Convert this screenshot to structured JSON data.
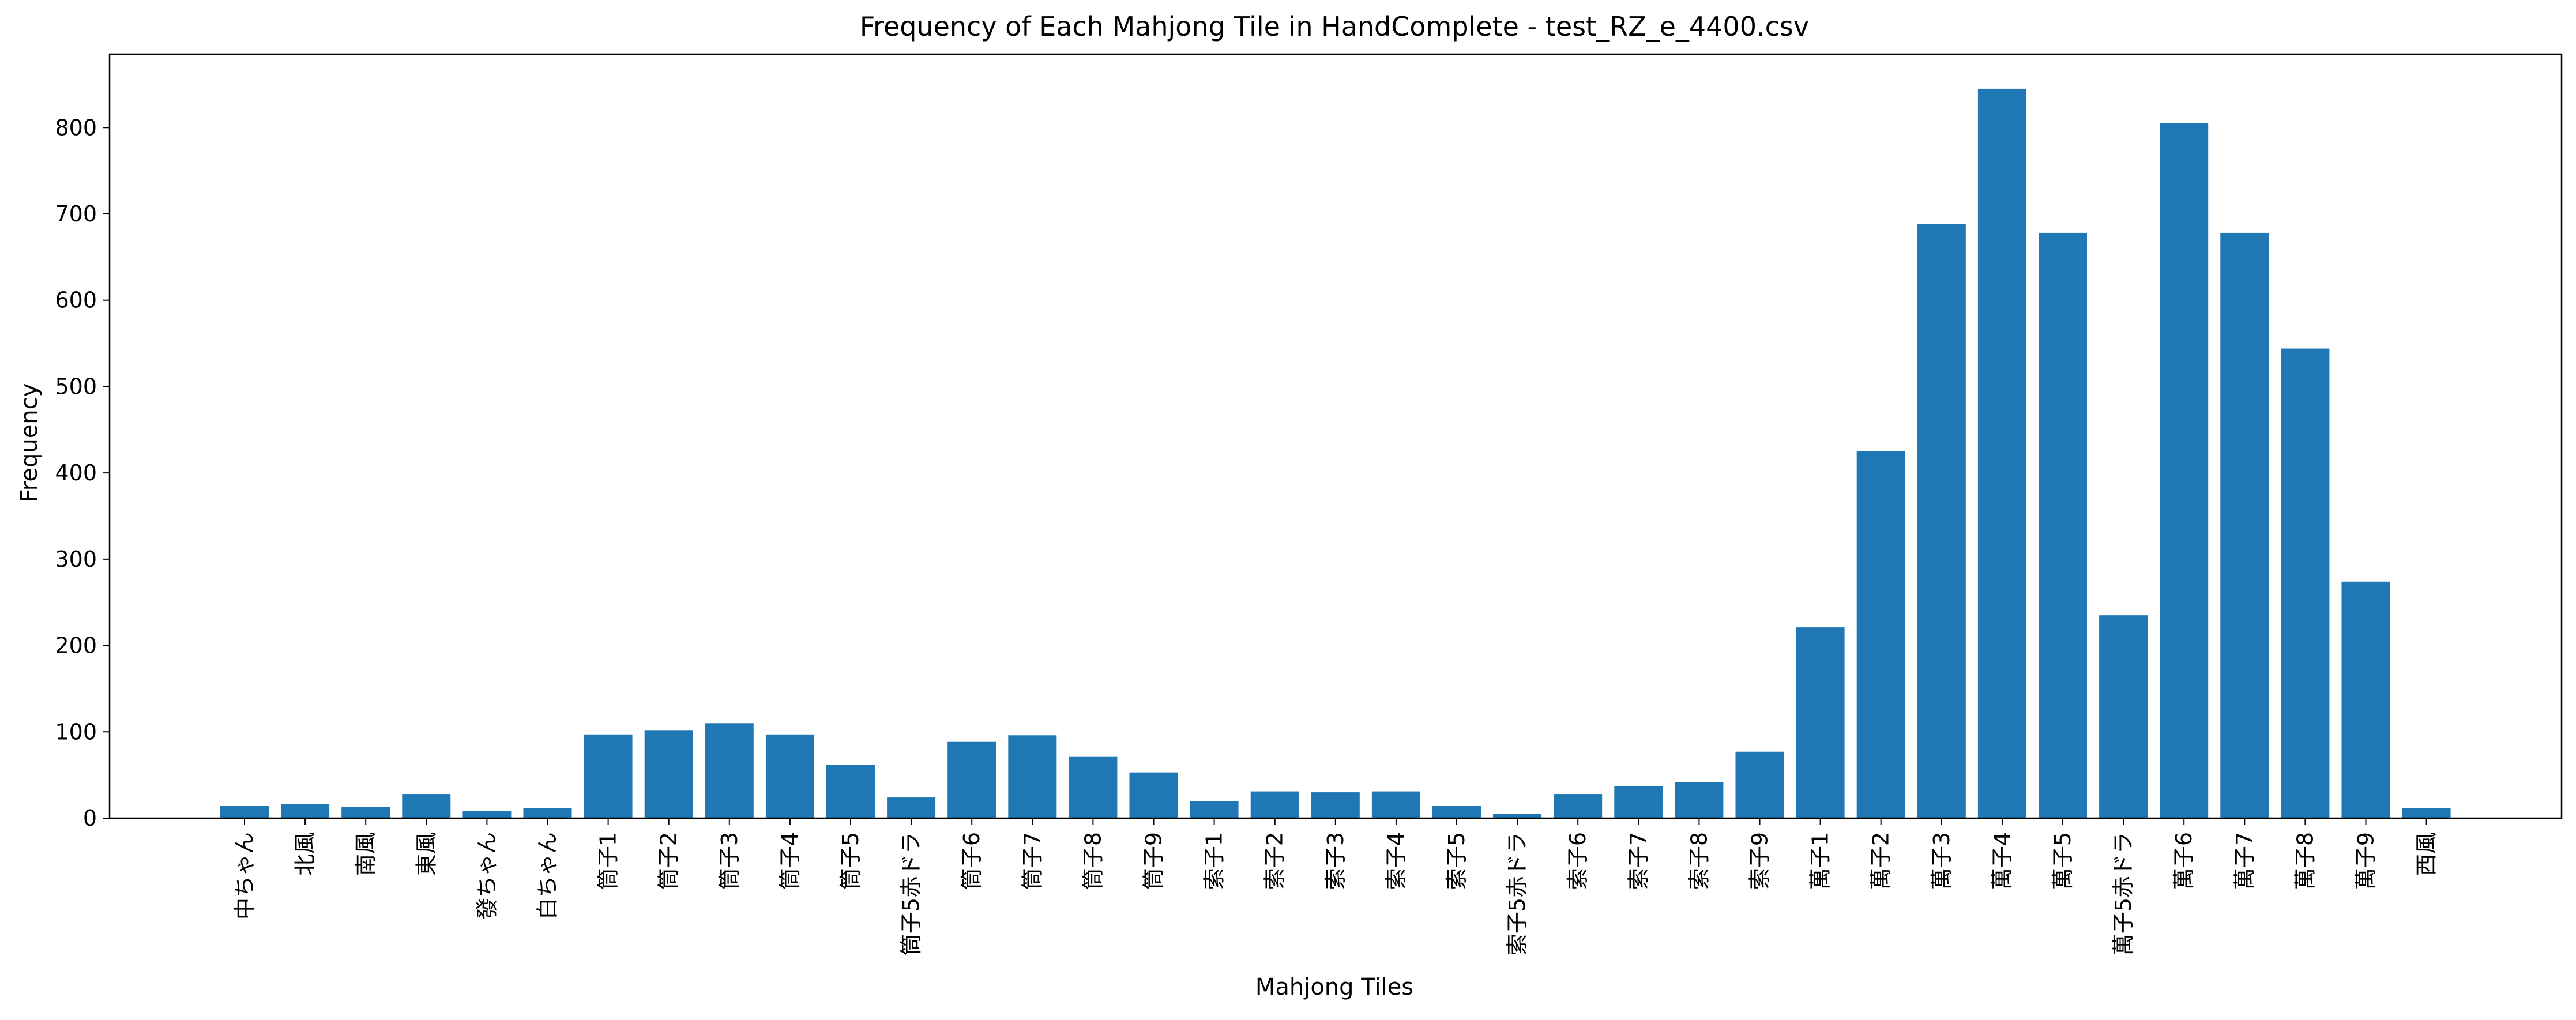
{
  "chart_data": {
    "type": "bar",
    "title": "Frequency of Each Mahjong Tile in HandComplete - test_RZ_e_4400.csv",
    "xlabel": "Mahjong Tiles",
    "ylabel": "Frequency",
    "ylim": [
      0,
      885
    ],
    "yticks": [
      0,
      100,
      200,
      300,
      400,
      500,
      600,
      700,
      800
    ],
    "grid": false,
    "bar_color": "#1f77b4",
    "categories": [
      "中ちゃん",
      "北風",
      "南風",
      "東風",
      "發ちゃん",
      "白ちゃん",
      "筒子1",
      "筒子2",
      "筒子3",
      "筒子4",
      "筒子5",
      "筒子5赤ドラ",
      "筒子6",
      "筒子7",
      "筒子8",
      "筒子9",
      "索子1",
      "索子2",
      "索子3",
      "索子4",
      "索子5",
      "索子5赤ドラ",
      "索子6",
      "索子7",
      "索子8",
      "索子9",
      "萬子1",
      "萬子2",
      "萬子3",
      "萬子4",
      "萬子5",
      "萬子5赤ドラ",
      "萬子6",
      "萬子7",
      "萬子8",
      "萬子9",
      "西風"
    ],
    "values": [
      14,
      16,
      13,
      28,
      8,
      12,
      97,
      102,
      110,
      97,
      62,
      24,
      89,
      96,
      71,
      53,
      20,
      31,
      30,
      31,
      14,
      5,
      28,
      37,
      42,
      77,
      221,
      425,
      688,
      845,
      678,
      235,
      805,
      678,
      544,
      274,
      12
    ]
  }
}
